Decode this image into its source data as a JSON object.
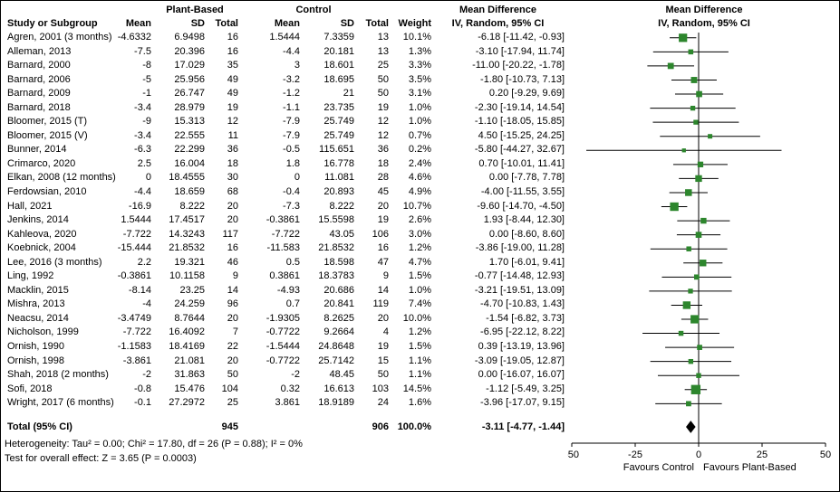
{
  "header": {
    "group_plant": "Plant-Based",
    "group_control": "Control",
    "group_md_text": "Mean Difference",
    "group_md_plot": "Mean Difference",
    "col_study": "Study or Subgroup",
    "col_mean": "Mean",
    "col_sd": "SD",
    "col_total": "Total",
    "col_weight": "Weight",
    "col_ci_text": "IV, Random, 95% CI",
    "col_ci_plot": "IV, Random, 95% CI"
  },
  "footer": {
    "heterogeneity": "Heterogeneity: Tau² = 0.00; Chi² = 17.80, df = 26 (P = 0.88); I² = 0%",
    "overall": "Test for overall effect: Z = 3.65 (P = 0.0003)"
  },
  "chart_data": {
    "type": "forest",
    "effect_measure": "Mean Difference, IV, Random, 95% CI",
    "x_axis": {
      "min": -50,
      "max": 50,
      "ticks": [
        -50,
        -25,
        0,
        25,
        50
      ]
    },
    "favours_left": "Favours Control",
    "favours_right": "Favours Plant-Based",
    "marker_color": "#2d862d",
    "line_color": "#000000",
    "diamond_color": "#000000",
    "studies": [
      {
        "study": "Agren, 2001 (3 months)",
        "mean1": "-4.6332",
        "sd1": "6.9498",
        "n1": "16",
        "mean2": "1.5444",
        "sd2": "7.3359",
        "n2": "13",
        "weight": "10.1%",
        "ci": "-6.18 [-11.42, -0.93]",
        "est": -6.18,
        "lo": -11.42,
        "hi": -0.93
      },
      {
        "study": "Alleman, 2013",
        "mean1": "-7.5",
        "sd1": "20.396",
        "n1": "16",
        "mean2": "-4.4",
        "sd2": "20.181",
        "n2": "13",
        "weight": "1.3%",
        "ci": "-3.10 [-17.94, 11.74]",
        "est": -3.1,
        "lo": -17.94,
        "hi": 11.74
      },
      {
        "study": "Barnard, 2000",
        "mean1": "-8",
        "sd1": "17.029",
        "n1": "35",
        "mean2": "3",
        "sd2": "18.601",
        "n2": "25",
        "weight": "3.3%",
        "ci": "-11.00 [-20.22, -1.78]",
        "est": -11.0,
        "lo": -20.22,
        "hi": -1.78
      },
      {
        "study": "Barnard, 2006",
        "mean1": "-5",
        "sd1": "25.956",
        "n1": "49",
        "mean2": "-3.2",
        "sd2": "18.695",
        "n2": "50",
        "weight": "3.5%",
        "ci": "-1.80 [-10.73, 7.13]",
        "est": -1.8,
        "lo": -10.73,
        "hi": 7.13
      },
      {
        "study": "Barnard, 2009",
        "mean1": "-1",
        "sd1": "26.747",
        "n1": "49",
        "mean2": "-1.2",
        "sd2": "21",
        "n2": "50",
        "weight": "3.1%",
        "ci": "0.20 [-9.29, 9.69]",
        "est": 0.2,
        "lo": -9.29,
        "hi": 9.69
      },
      {
        "study": "Barnard, 2018",
        "mean1": "-3.4",
        "sd1": "28.979",
        "n1": "19",
        "mean2": "-1.1",
        "sd2": "23.735",
        "n2": "19",
        "weight": "1.0%",
        "ci": "-2.30 [-19.14, 14.54]",
        "est": -2.3,
        "lo": -19.14,
        "hi": 14.54
      },
      {
        "study": "Bloomer, 2015 (T)",
        "mean1": "-9",
        "sd1": "15.313",
        "n1": "12",
        "mean2": "-7.9",
        "sd2": "25.749",
        "n2": "12",
        "weight": "1.0%",
        "ci": "-1.10 [-18.05, 15.85]",
        "est": -1.1,
        "lo": -18.05,
        "hi": 15.85
      },
      {
        "study": "Bloomer, 2015 (V)",
        "mean1": "-3.4",
        "sd1": "22.555",
        "n1": "11",
        "mean2": "-7.9",
        "sd2": "25.749",
        "n2": "12",
        "weight": "0.7%",
        "ci": "4.50 [-15.25, 24.25]",
        "est": 4.5,
        "lo": -15.25,
        "hi": 24.25
      },
      {
        "study": "Bunner, 2014",
        "mean1": "-6.3",
        "sd1": "22.299",
        "n1": "36",
        "mean2": "-0.5",
        "sd2": "115.651",
        "n2": "36",
        "weight": "0.2%",
        "ci": "-5.80 [-44.27, 32.67]",
        "est": -5.8,
        "lo": -44.27,
        "hi": 32.67
      },
      {
        "study": "Crimarco, 2020",
        "mean1": "2.5",
        "sd1": "16.004",
        "n1": "18",
        "mean2": "1.8",
        "sd2": "16.778",
        "n2": "18",
        "weight": "2.4%",
        "ci": "0.70 [-10.01, 11.41]",
        "est": 0.7,
        "lo": -10.01,
        "hi": 11.41
      },
      {
        "study": "Elkan, 2008 (12 months)",
        "mean1": "0",
        "sd1": "18.4555",
        "n1": "30",
        "mean2": "0",
        "sd2": "11.081",
        "n2": "28",
        "weight": "4.6%",
        "ci": "0.00 [-7.78, 7.78]",
        "est": 0.0,
        "lo": -7.78,
        "hi": 7.78
      },
      {
        "study": "Ferdowsian, 2010",
        "mean1": "-4.4",
        "sd1": "18.659",
        "n1": "68",
        "mean2": "-0.4",
        "sd2": "20.893",
        "n2": "45",
        "weight": "4.9%",
        "ci": "-4.00 [-11.55, 3.55]",
        "est": -4.0,
        "lo": -11.55,
        "hi": 3.55
      },
      {
        "study": "Hall, 2021",
        "mean1": "-16.9",
        "sd1": "8.222",
        "n1": "20",
        "mean2": "-7.3",
        "sd2": "8.222",
        "n2": "20",
        "weight": "10.7%",
        "ci": "-9.60 [-14.70, -4.50]",
        "est": -9.6,
        "lo": -14.7,
        "hi": -4.5
      },
      {
        "study": "Jenkins, 2014",
        "mean1": "1.5444",
        "sd1": "17.4517",
        "n1": "20",
        "mean2": "-0.3861",
        "sd2": "15.5598",
        "n2": "19",
        "weight": "2.6%",
        "ci": "1.93 [-8.44, 12.30]",
        "est": 1.93,
        "lo": -8.44,
        "hi": 12.3
      },
      {
        "study": "Kahleova, 2020",
        "mean1": "-7.722",
        "sd1": "14.3243",
        "n1": "117",
        "mean2": "-7.722",
        "sd2": "43.05",
        "n2": "106",
        "weight": "3.0%",
        "ci": "0.00 [-8.60, 8.60]",
        "est": 0.0,
        "lo": -8.6,
        "hi": 8.6
      },
      {
        "study": "Koebnick, 2004",
        "mean1": "-15.444",
        "sd1": "21.8532",
        "n1": "16",
        "mean2": "-11.583",
        "sd2": "21.8532",
        "n2": "16",
        "weight": "1.2%",
        "ci": "-3.86 [-19.00, 11.28]",
        "est": -3.86,
        "lo": -19.0,
        "hi": 11.28
      },
      {
        "study": "Lee, 2016 (3 months)",
        "mean1": "2.2",
        "sd1": "19.321",
        "n1": "46",
        "mean2": "0.5",
        "sd2": "18.598",
        "n2": "47",
        "weight": "4.7%",
        "ci": "1.70 [-6.01, 9.41]",
        "est": 1.7,
        "lo": -6.01,
        "hi": 9.41
      },
      {
        "study": "Ling, 1992",
        "mean1": "-0.3861",
        "sd1": "10.1158",
        "n1": "9",
        "mean2": "0.3861",
        "sd2": "18.3783",
        "n2": "9",
        "weight": "1.5%",
        "ci": "-0.77 [-14.48, 12.93]",
        "est": -0.77,
        "lo": -14.48,
        "hi": 12.93
      },
      {
        "study": "Macklin, 2015",
        "mean1": "-8.14",
        "sd1": "23.25",
        "n1": "14",
        "mean2": "-4.93",
        "sd2": "20.686",
        "n2": "14",
        "weight": "1.0%",
        "ci": "-3.21 [-19.51, 13.09]",
        "est": -3.21,
        "lo": -19.51,
        "hi": 13.09
      },
      {
        "study": "Mishra, 2013",
        "mean1": "-4",
        "sd1": "24.259",
        "n1": "96",
        "mean2": "0.7",
        "sd2": "20.841",
        "n2": "119",
        "weight": "7.4%",
        "ci": "-4.70 [-10.83, 1.43]",
        "est": -4.7,
        "lo": -10.83,
        "hi": 1.43
      },
      {
        "study": "Neacsu, 2014",
        "mean1": "-3.4749",
        "sd1": "8.7644",
        "n1": "20",
        "mean2": "-1.9305",
        "sd2": "8.2625",
        "n2": "20",
        "weight": "10.0%",
        "ci": "-1.54 [-6.82, 3.73]",
        "est": -1.54,
        "lo": -6.82,
        "hi": 3.73
      },
      {
        "study": "Nicholson, 1999",
        "mean1": "-7.722",
        "sd1": "16.4092",
        "n1": "7",
        "mean2": "-0.7722",
        "sd2": "9.2664",
        "n2": "4",
        "weight": "1.2%",
        "ci": "-6.95 [-22.12, 8.22]",
        "est": -6.95,
        "lo": -22.12,
        "hi": 8.22
      },
      {
        "study": "Ornish, 1990",
        "mean1": "-1.1583",
        "sd1": "18.4169",
        "n1": "22",
        "mean2": "-1.5444",
        "sd2": "24.8648",
        "n2": "19",
        "weight": "1.5%",
        "ci": "0.39 [-13.19, 13.96]",
        "est": 0.39,
        "lo": -13.19,
        "hi": 13.96
      },
      {
        "study": "Ornish, 1998",
        "mean1": "-3.861",
        "sd1": "21.081",
        "n1": "20",
        "mean2": "-0.7722",
        "sd2": "25.7142",
        "n2": "15",
        "weight": "1.1%",
        "ci": "-3.09 [-19.05, 12.87]",
        "est": -3.09,
        "lo": -19.05,
        "hi": 12.87
      },
      {
        "study": "Shah, 2018 (2 months)",
        "mean1": "-2",
        "sd1": "31.863",
        "n1": "50",
        "mean2": "-2",
        "sd2": "48.45",
        "n2": "50",
        "weight": "1.1%",
        "ci": "0.00 [-16.07, 16.07]",
        "est": 0.0,
        "lo": -16.07,
        "hi": 16.07
      },
      {
        "study": "Sofi, 2018",
        "mean1": "-0.8",
        "sd1": "15.476",
        "n1": "104",
        "mean2": "0.32",
        "sd2": "16.613",
        "n2": "103",
        "weight": "14.5%",
        "ci": "-1.12 [-5.49, 3.25]",
        "est": -1.12,
        "lo": -5.49,
        "hi": 3.25
      },
      {
        "study": "Wright, 2017 (6 months)",
        "mean1": "-0.1",
        "sd1": "27.2972",
        "n1": "25",
        "mean2": "3.861",
        "sd2": "18.9189",
        "n2": "24",
        "weight": "1.6%",
        "ci": "-3.96 [-17.07, 9.15]",
        "est": -3.96,
        "lo": -17.07,
        "hi": 9.15
      }
    ],
    "total": {
      "study": "Total (95% CI)",
      "mean1": "",
      "sd1": "",
      "n1": "945",
      "mean2": "",
      "sd2": "",
      "n2": "906",
      "weight": "100.0%",
      "ci": "-3.11 [-4.77, -1.44]",
      "est": -3.11,
      "lo": -4.77,
      "hi": -1.44
    }
  }
}
